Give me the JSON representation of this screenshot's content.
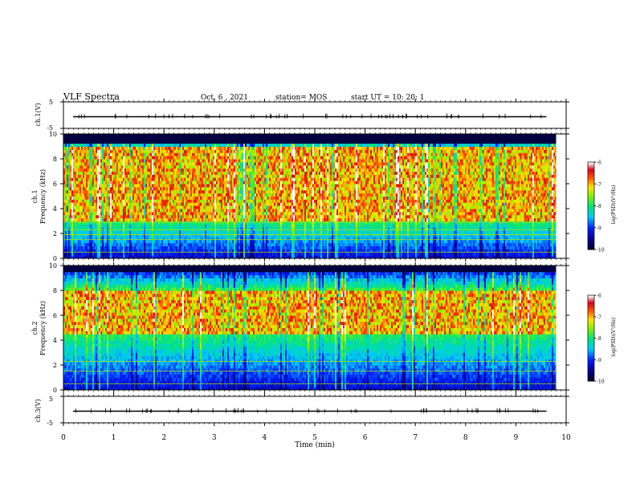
{
  "header": {
    "title": "VLF Spectra",
    "date": "Oct. 6 , 2021",
    "station": "station= MOS",
    "start": "start  UT =   10: 20: 1"
  },
  "chart_data": [
    {
      "type": "line",
      "name": "ch1-waveform",
      "ylabel": "ch.1(V)",
      "ylim": [
        -5,
        5
      ],
      "yticks": [
        "5",
        "-5"
      ],
      "xlim": [
        0,
        10
      ],
      "series": [
        {
          "values_constant": 0
        }
      ]
    },
    {
      "type": "heatmap",
      "name": "ch1-spectrogram",
      "ylabel_top": "ch.1",
      "ylabel": "Frequency  (kHz)",
      "ylim": [
        0,
        10
      ],
      "yticks": [
        "0",
        "2",
        "4",
        "6",
        "8",
        "10"
      ],
      "xlim": [
        0,
        10
      ],
      "colorbar": {
        "label": "log(PSD)(V²/Hz)",
        "range": [
          -10,
          -6
        ],
        "ticks": [
          "-6",
          "-7",
          "-8",
          "-9",
          "-10"
        ]
      },
      "features": {
        "main_band_khz": [
          3,
          9
        ],
        "cutoff_khz": 9.3,
        "narrowband_lines_khz": [
          0.5,
          1.5,
          1.9,
          2.3,
          2.9
        ],
        "data_end_min": 9.8
      }
    },
    {
      "type": "heatmap",
      "name": "ch2-spectrogram",
      "ylabel_top": "ch.2",
      "ylabel": "Frequency  (kHz)",
      "ylim": [
        0,
        10
      ],
      "yticks": [
        "0",
        "2",
        "4",
        "6",
        "8",
        "10"
      ],
      "xlim": [
        0,
        10
      ],
      "colorbar": {
        "label": "log(PSD)(V²/Hz)",
        "range": [
          -10,
          -6
        ],
        "ticks": [
          "-6",
          "-7",
          "-8",
          "-9",
          "-10"
        ]
      },
      "features": {
        "main_band_khz": [
          4.5,
          8
        ],
        "cutoff_khz": 9.6,
        "narrowband_lines_khz": [
          0.5,
          1.5,
          2.3
        ],
        "data_end_min": 9.8
      }
    },
    {
      "type": "line",
      "name": "ch3-waveform",
      "ylabel": "ch.3(V)",
      "ylim": [
        -5,
        5
      ],
      "yticks": [
        "5",
        "-5"
      ],
      "xlim": [
        0,
        10
      ],
      "series": [
        {
          "values_constant": 0
        }
      ]
    }
  ],
  "xaxis": {
    "label": "Time  (min)",
    "ticks": [
      "0",
      "1",
      "2",
      "3",
      "4",
      "5",
      "6",
      "7",
      "8",
      "9",
      "10"
    ]
  }
}
